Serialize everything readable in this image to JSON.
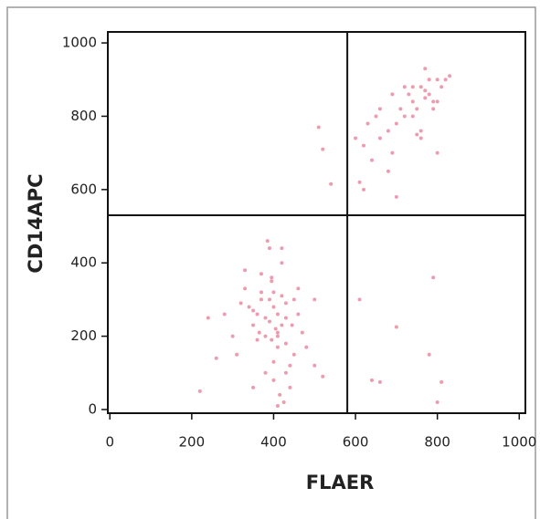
{
  "chart_data": {
    "type": "scatter",
    "x_label": "FLAER",
    "y_label": "CD14APC",
    "color": "#e05a78",
    "xlim": [
      -5,
      1015
    ],
    "ylim": [
      -10,
      1030
    ],
    "xticks": [
      0,
      200,
      400,
      600,
      800,
      1000
    ],
    "yticks": [
      0,
      200,
      400,
      600,
      800,
      1000
    ],
    "gates": {
      "x": 580,
      "y": 530
    },
    "x": [
      380,
      400,
      420,
      410,
      390,
      360,
      430,
      450,
      370,
      340,
      410,
      395,
      420,
      440,
      380,
      350,
      460,
      300,
      310,
      330,
      400,
      415,
      425,
      360,
      370,
      390,
      430,
      445,
      470,
      480,
      280,
      260,
      240,
      220,
      350,
      405,
      410,
      420,
      390,
      380,
      400,
      430,
      460,
      500,
      520,
      330,
      320,
      410,
      395,
      385,
      420,
      430,
      350,
      370,
      440,
      410,
      400,
      395,
      365,
      450,
      760,
      780,
      740,
      720,
      800,
      770,
      750,
      700,
      680,
      650,
      620,
      640,
      660,
      790,
      810,
      730,
      710,
      690,
      760,
      780,
      820,
      770,
      740,
      600,
      610,
      630,
      700,
      750,
      800,
      790,
      720,
      680,
      660,
      760,
      740,
      800,
      770,
      690,
      830,
      620,
      510,
      520,
      540,
      610,
      700,
      790,
      780,
      660,
      810,
      800,
      500,
      640
    ],
    "y": [
      250,
      280,
      230,
      200,
      300,
      260,
      180,
      150,
      320,
      280,
      210,
      350,
      400,
      120,
      100,
      230,
      260,
      200,
      150,
      330,
      80,
      40,
      20,
      190,
      370,
      440,
      290,
      230,
      210,
      170,
      260,
      140,
      250,
      50,
      60,
      220,
      170,
      310,
      240,
      200,
      130,
      100,
      330,
      120,
      90,
      380,
      290,
      260,
      360,
      460,
      440,
      250,
      270,
      300,
      60,
      10,
      320,
      190,
      210,
      300,
      880,
      860,
      840,
      800,
      900,
      870,
      820,
      780,
      760,
      800,
      720,
      680,
      740,
      840,
      880,
      860,
      820,
      700,
      760,
      900,
      900,
      930,
      880,
      740,
      620,
      780,
      580,
      750,
      840,
      820,
      880,
      650,
      820,
      740,
      800,
      700,
      850,
      860,
      910,
      600,
      770,
      710,
      615,
      300,
      225,
      360,
      150,
      75,
      75,
      20,
      300,
      80
    ]
  }
}
